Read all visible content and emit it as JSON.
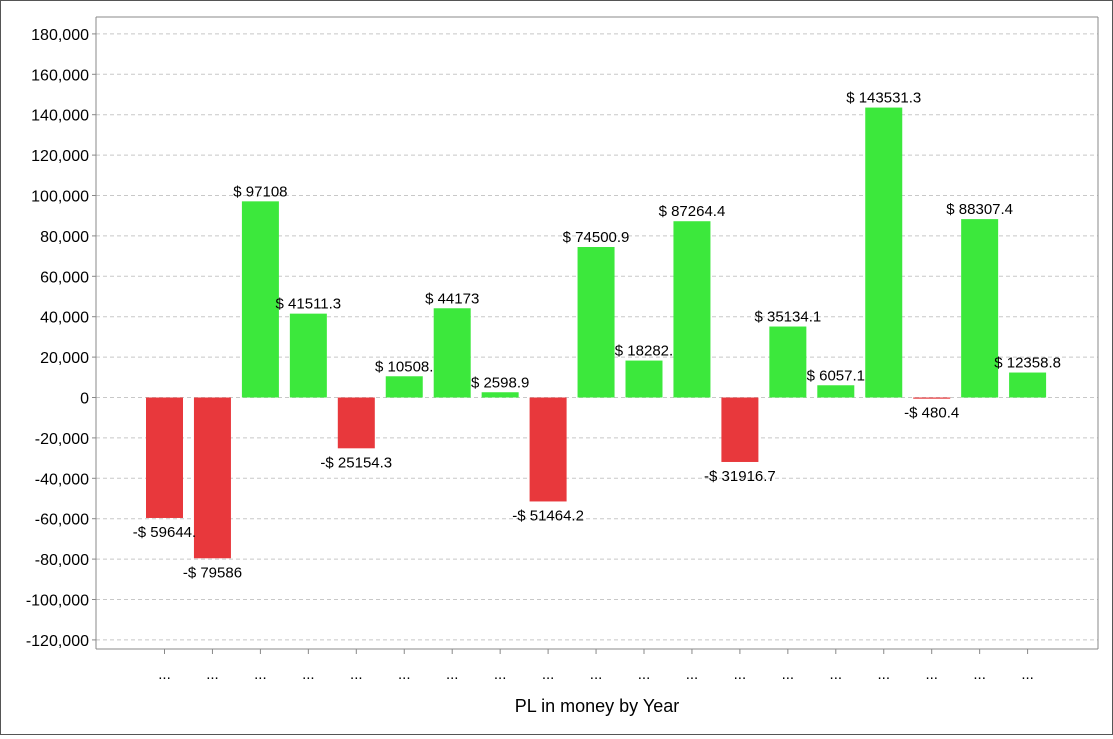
{
  "chart_data": {
    "type": "bar",
    "title": "",
    "xlabel": "PL in money by Year",
    "ylabel": "",
    "ylim": [
      -125000,
      190000
    ],
    "yticks": [
      180000,
      160000,
      140000,
      120000,
      100000,
      80000,
      60000,
      40000,
      20000,
      0,
      -20000,
      -40000,
      -60000,
      -80000,
      -100000,
      -120000
    ],
    "ytick_labels": [
      "180,000",
      "160,000",
      "140,000",
      "120,000",
      "100,000",
      "80,000",
      "60,000",
      "40,000",
      "20,000",
      "0",
      "-20,000",
      "-40,000",
      "-60,000",
      "-80,000",
      "-100,000",
      "-120,000"
    ],
    "grid": true,
    "categories": [
      "...",
      "...",
      "...",
      "...",
      "...",
      "...",
      "...",
      "...",
      "...",
      "...",
      "...",
      "...",
      "...",
      "...",
      "...",
      "...",
      "...",
      "...",
      "..."
    ],
    "values": [
      -59644,
      -79586,
      97108,
      41511.3,
      -25154.3,
      10508,
      44173,
      2598.9,
      -51464.2,
      74500.9,
      18282,
      87264.4,
      -31916.7,
      35134.1,
      6057.1,
      143531.3,
      -480.4,
      88307.4,
      12358.8
    ],
    "data_labels": [
      "-$ 59644.",
      "-$ 79586",
      "$ 97108",
      "$ 41511.3",
      "-$ 25154.3",
      "$ 10508.",
      "$ 44173",
      "$ 2598.9",
      "-$ 51464.2",
      "$ 74500.9",
      "$ 18282.",
      "$ 87264.4",
      "-$ 31916.7",
      "$ 35134.1",
      "$ 6057.1",
      "$ 143531.3",
      "-$ 480.4",
      "$ 88307.4",
      "$ 12358.8"
    ],
    "colors": {
      "positive": "#3ce83c",
      "negative": "#e8383c",
      "grid": "#c8c8c8",
      "axis": "#888888"
    }
  }
}
